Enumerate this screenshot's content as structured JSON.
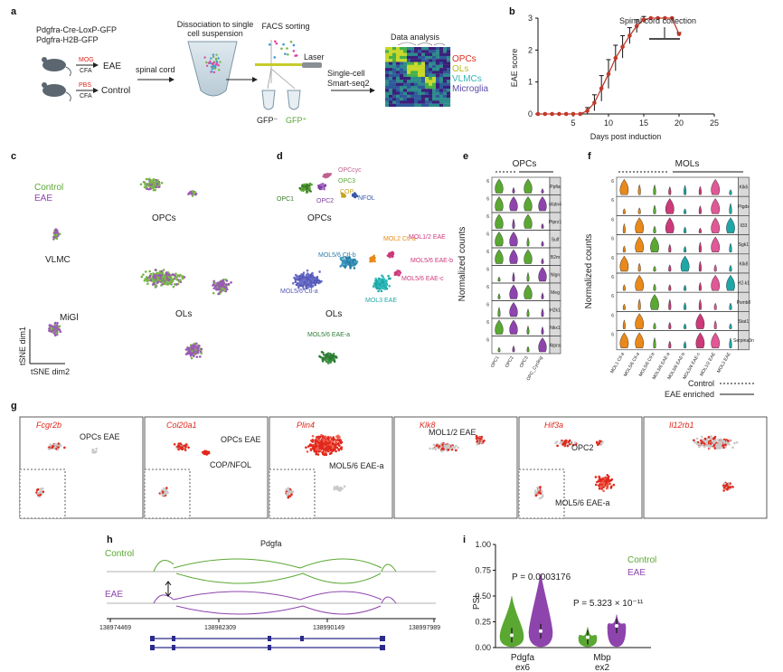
{
  "panels": [
    "a",
    "b",
    "c",
    "d",
    "e",
    "f",
    "g",
    "h",
    "i"
  ],
  "a": {
    "strain1": "Pdgfra-Cre-LoxP-GFP",
    "strain2": "Pdgfra-H2B-GFP",
    "mog": "MOG",
    "pbs": "PBS",
    "cfa": "CFA",
    "eae": "EAE",
    "control": "Control",
    "dissociation": "Dissociation to single cell suspension",
    "spinal_cord": "spinal cord",
    "facs": "FACS sorting",
    "laser": "Laser",
    "single_cell": "Single-cell",
    "smart_seq": "Smart-seq2",
    "gfp_neg": "GFP⁻",
    "gfp_pos": "GFP⁺",
    "data_analysis": "Data analysis",
    "legend": [
      "OPCs",
      "OLs",
      "VLMCs",
      "Microglia"
    ]
  },
  "b": {
    "annotation": "Spinal cord collection",
    "chart_data": {
      "type": "line",
      "xlabel": "Days post induction",
      "ylabel": "EAE score",
      "xlim": [
        0,
        25
      ],
      "ylim": [
        0,
        3
      ],
      "xticks": [
        5,
        10,
        15,
        20,
        25
      ],
      "yticks": [
        0,
        1,
        2,
        3
      ],
      "x": [
        0,
        1,
        2,
        3,
        4,
        5,
        6,
        7,
        8,
        9,
        10,
        11,
        12,
        13,
        14,
        15,
        16,
        17,
        18,
        19,
        20
      ],
      "y": [
        0,
        0,
        0,
        0,
        0,
        0,
        0,
        0.1,
        0.35,
        0.8,
        1.25,
        1.75,
        2.1,
        2.45,
        2.75,
        2.95,
        3,
        3,
        3,
        3,
        2.5
      ],
      "err": [
        0,
        0,
        0,
        0,
        0,
        0,
        0,
        0.1,
        0.25,
        0.4,
        0.45,
        0.4,
        0.35,
        0.25,
        0.2,
        0.1,
        0,
        0,
        0,
        0,
        0.05
      ]
    }
  },
  "c": {
    "legend": [
      "Control",
      "EAE"
    ],
    "clusters": [
      "OPCs",
      "VLMC",
      "OLs",
      "MiGl"
    ],
    "axis_y": "tSNE dim1",
    "axis_x": "tSNE dim2"
  },
  "d": {
    "labels": [
      "OPCcyc",
      "OPC3",
      "OPC1",
      "OPC2",
      "COP",
      "NFOL",
      "OPCs",
      "MOL5/6 Ctl-b",
      "MOL2 Ctl-a",
      "MOL1/2 EAE",
      "MOL5/6 EAE-b",
      "MOL5/6 Ctl-a",
      "MOL3 EAE",
      "MOL5/6 EAE-c",
      "OLs",
      "MOL5/6 EAE-a"
    ]
  },
  "e": {
    "title": "OPCs",
    "ylabel": "Normalized counts",
    "genes": [
      "Ppfia",
      "Matn4",
      "Ptprz1",
      "Sulf",
      "B2m",
      "Nlgn",
      "Meg",
      "H2k1",
      "Nkx1",
      "Atpns"
    ],
    "groups": [
      "OPC1",
      "OPC2",
      "OPC3",
      "OPC_Cycling"
    ]
  },
  "f": {
    "title": "MOLs",
    "ylabel": "Normalized counts",
    "genes": [
      "Klk6",
      "Ptgds",
      "Il33",
      "Sgk1",
      "Klk8",
      "H2-k1",
      "Psmb8",
      "Stat1",
      "Serpina3n"
    ],
    "groups": [
      "MOL1 Ctl-a",
      "MOL5/6 Ctl-a",
      "MOL5/6 Ctl-b",
      "MOL5/6 EAE-a",
      "MOL5/6 EAE-b",
      "MOL5/6 EAE-c",
      "MOL1/2 EAE",
      "MOL3 EAE"
    ],
    "legend": [
      "Control",
      "EAE enriched"
    ]
  },
  "g": {
    "genes": [
      "Fcgr2b",
      "Col20a1",
      "Plin4",
      "Klk8",
      "Hif3a",
      "Il12rb1"
    ],
    "annotations": [
      "OPCs EAE",
      "OPCs EAE",
      "COP/NFOL",
      "MOL5/6 EAE-a",
      "MOL1/2 EAE",
      "OPC2",
      "MOL5/6 EAE-a"
    ]
  },
  "h": {
    "gene": "Pdgfa",
    "control": "Control",
    "eae": "EAE",
    "coords": [
      "138974469",
      "138982309",
      "138990149",
      "138997989"
    ]
  },
  "i": {
    "p1": "P = 0.0003176",
    "p2": "P = 5.323 × 10⁻¹¹",
    "legend": [
      "Control",
      "EAE"
    ],
    "chart_data": {
      "type": "violin",
      "ylabel": "PSI",
      "ylim": [
        0,
        1
      ],
      "yticks": [
        "0.00",
        "0.25",
        "0.50",
        "0.75",
        "1.00"
      ],
      "categories": [
        "Pdgfa ex6",
        "Mbp ex2"
      ],
      "series": [
        {
          "name": "Control",
          "color": "#5aa832",
          "medians": [
            0.12,
            0.1
          ],
          "maxima": [
            0.5,
            0.2
          ]
        },
        {
          "name": "EAE",
          "color": "#8e44ad",
          "medians": [
            0.16,
            0.21
          ],
          "maxima": [
            0.72,
            0.32
          ]
        }
      ]
    }
  }
}
